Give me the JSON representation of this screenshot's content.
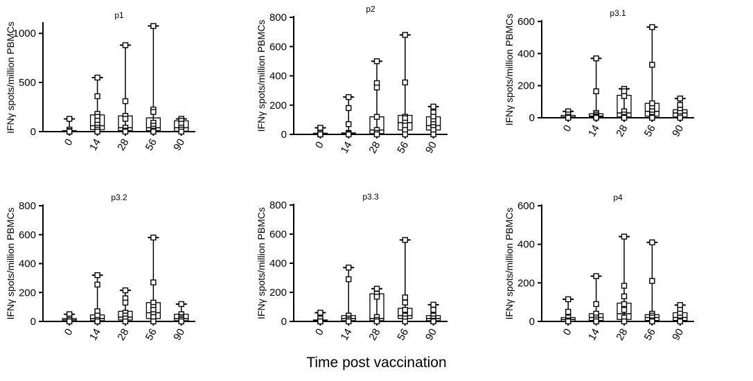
{
  "figure": {
    "xlabel": "Time post vaccination"
  },
  "chart_data": [
    {
      "type": "box",
      "title": "p1",
      "ylabel": "IFNγ spots/million PBMCs",
      "categories": [
        "0",
        "14",
        "28",
        "56",
        "90"
      ],
      "ylim": [
        0,
        1100
      ],
      "yticks": [
        0,
        500,
        1000
      ],
      "series": [
        {
          "category": "0",
          "points": [
            130,
            20,
            5,
            0,
            0,
            0
          ],
          "box": [
            0,
            2,
            10
          ],
          "whisker": [
            0,
            130
          ]
        },
        {
          "category": "14",
          "points": [
            550,
            360,
            180,
            150,
            110,
            70,
            40,
            20,
            0
          ],
          "box": [
            20,
            60,
            170
          ],
          "whisker": [
            0,
            550
          ]
        },
        {
          "category": "28",
          "points": [
            880,
            310,
            160,
            130,
            40,
            10,
            0
          ],
          "box": [
            10,
            40,
            160
          ],
          "whisker": [
            0,
            880
          ]
        },
        {
          "category": "56",
          "points": [
            1075,
            225,
            200,
            90,
            60,
            30,
            10,
            0
          ],
          "box": [
            10,
            40,
            140
          ],
          "whisker": [
            0,
            1075
          ]
        },
        {
          "category": "90",
          "points": [
            130,
            110,
            80,
            40,
            20,
            0
          ],
          "box": [
            5,
            40,
            110
          ],
          "whisker": [
            0,
            130
          ]
        }
      ]
    },
    {
      "type": "box",
      "title": "p2",
      "ylabel": "IFNγ spots/million PBMCs",
      "categories": [
        "0",
        "14",
        "28",
        "56",
        "90"
      ],
      "ylim": [
        0,
        800
      ],
      "yticks": [
        0,
        200,
        400,
        600,
        800
      ],
      "series": [
        {
          "category": "0",
          "points": [
            45,
            10,
            0,
            0
          ],
          "box": [
            0,
            2,
            8
          ],
          "whisker": [
            0,
            45
          ]
        },
        {
          "category": "14",
          "points": [
            255,
            180,
            70,
            10,
            5,
            0
          ],
          "box": [
            0,
            5,
            10
          ],
          "whisker": [
            0,
            255
          ]
        },
        {
          "category": "28",
          "points": [
            500,
            350,
            320,
            120,
            30,
            10,
            0
          ],
          "box": [
            5,
            30,
            120
          ],
          "whisker": [
            0,
            500
          ]
        },
        {
          "category": "56",
          "points": [
            680,
            355,
            120,
            110,
            80,
            60,
            30,
            0
          ],
          "box": [
            30,
            80,
            130
          ],
          "whisker": [
            0,
            680
          ]
        },
        {
          "category": "90",
          "points": [
            190,
            150,
            120,
            90,
            70,
            50,
            30,
            0
          ],
          "box": [
            30,
            60,
            120
          ],
          "whisker": [
            0,
            190
          ]
        }
      ]
    },
    {
      "type": "box",
      "title": "p3.1",
      "ylabel": "IFNγ spots/million PBMCs",
      "categories": [
        "0",
        "14",
        "28",
        "56",
        "90"
      ],
      "ylim": [
        0,
        600
      ],
      "yticks": [
        0,
        200,
        400,
        600
      ],
      "series": [
        {
          "category": "0",
          "points": [
            40,
            20,
            5,
            0
          ],
          "box": [
            0,
            5,
            15
          ],
          "whisker": [
            0,
            40
          ]
        },
        {
          "category": "14",
          "points": [
            370,
            165,
            30,
            20,
            10,
            5,
            0
          ],
          "box": [
            5,
            10,
            25
          ],
          "whisker": [
            0,
            370
          ]
        },
        {
          "category": "28",
          "points": [
            180,
            165,
            135,
            40,
            20,
            5,
            0
          ],
          "box": [
            5,
            30,
            140
          ],
          "whisker": [
            0,
            180
          ]
        },
        {
          "category": "56",
          "points": [
            565,
            330,
            90,
            60,
            40,
            20,
            5,
            0
          ],
          "box": [
            10,
            40,
            90
          ],
          "whisker": [
            0,
            565
          ]
        },
        {
          "category": "90",
          "points": [
            120,
            80,
            50,
            30,
            10,
            0
          ],
          "box": [
            5,
            30,
            50
          ],
          "whisker": [
            0,
            120
          ]
        }
      ]
    },
    {
      "type": "box",
      "title": "p3.2",
      "ylabel": "IFNγ spots/million PBMCs",
      "categories": [
        "0",
        "14",
        "28",
        "56",
        "90"
      ],
      "ylim": [
        0,
        800
      ],
      "yticks": [
        0,
        200,
        400,
        600,
        800
      ],
      "series": [
        {
          "category": "0",
          "points": [
            50,
            20,
            10,
            0
          ],
          "box": [
            0,
            10,
            20
          ],
          "whisker": [
            0,
            50
          ]
        },
        {
          "category": "14",
          "points": [
            320,
            255,
            70,
            40,
            10,
            0
          ],
          "box": [
            5,
            20,
            45
          ],
          "whisker": [
            0,
            320
          ]
        },
        {
          "category": "28",
          "points": [
            215,
            160,
            130,
            60,
            40,
            20,
            0
          ],
          "box": [
            10,
            30,
            70
          ],
          "whisker": [
            0,
            215
          ]
        },
        {
          "category": "56",
          "points": [
            580,
            270,
            130,
            100,
            80,
            50,
            30,
            0
          ],
          "box": [
            20,
            60,
            130
          ],
          "whisker": [
            0,
            580
          ]
        },
        {
          "category": "90",
          "points": [
            120,
            50,
            30,
            20,
            10,
            0
          ],
          "box": [
            5,
            20,
            50
          ],
          "whisker": [
            0,
            120
          ]
        }
      ]
    },
    {
      "type": "box",
      "title": "p3.3",
      "ylabel": "IFNγ spots/million PBMCs",
      "categories": [
        "0",
        "14",
        "28",
        "56",
        "90"
      ],
      "ylim": [
        0,
        800
      ],
      "yticks": [
        0,
        200,
        400,
        600,
        800
      ],
      "series": [
        {
          "category": "0",
          "points": [
            60,
            20,
            0,
            0
          ],
          "box": [
            0,
            5,
            10
          ],
          "whisker": [
            0,
            60
          ]
        },
        {
          "category": "14",
          "points": [
            370,
            290,
            40,
            20,
            10,
            0
          ],
          "box": [
            5,
            20,
            40
          ],
          "whisker": [
            0,
            370
          ]
        },
        {
          "category": "28",
          "points": [
            225,
            190,
            170,
            30,
            10,
            0
          ],
          "box": [
            5,
            20,
            190
          ],
          "whisker": [
            0,
            225
          ]
        },
        {
          "category": "56",
          "points": [
            560,
            165,
            130,
            80,
            40,
            20,
            0
          ],
          "box": [
            20,
            40,
            90
          ],
          "whisker": [
            0,
            560
          ]
        },
        {
          "category": "90",
          "points": [
            115,
            80,
            40,
            20,
            5,
            0
          ],
          "box": [
            5,
            20,
            40
          ],
          "whisker": [
            0,
            115
          ]
        }
      ]
    },
    {
      "type": "box",
      "title": "p4",
      "ylabel": "IFNγ spots/million PBMCs",
      "categories": [
        "0",
        "14",
        "28",
        "56",
        "90"
      ],
      "ylim": [
        0,
        600
      ],
      "yticks": [
        0,
        200,
        400,
        600
      ],
      "series": [
        {
          "category": "0",
          "points": [
            115,
            50,
            20,
            5,
            0
          ],
          "box": [
            0,
            10,
            20
          ],
          "whisker": [
            0,
            115
          ]
        },
        {
          "category": "14",
          "points": [
            235,
            90,
            40,
            20,
            10,
            0
          ],
          "box": [
            5,
            20,
            40
          ],
          "whisker": [
            0,
            235
          ]
        },
        {
          "category": "28",
          "points": [
            440,
            185,
            130,
            90,
            60,
            20,
            0
          ],
          "box": [
            10,
            40,
            95
          ],
          "whisker": [
            0,
            440
          ]
        },
        {
          "category": "56",
          "points": [
            410,
            210,
            40,
            30,
            20,
            5,
            0
          ],
          "box": [
            5,
            20,
            35
          ],
          "whisker": [
            0,
            410
          ]
        },
        {
          "category": "90",
          "points": [
            85,
            60,
            40,
            20,
            5,
            0
          ],
          "box": [
            5,
            20,
            45
          ],
          "whisker": [
            0,
            85
          ]
        }
      ]
    }
  ]
}
